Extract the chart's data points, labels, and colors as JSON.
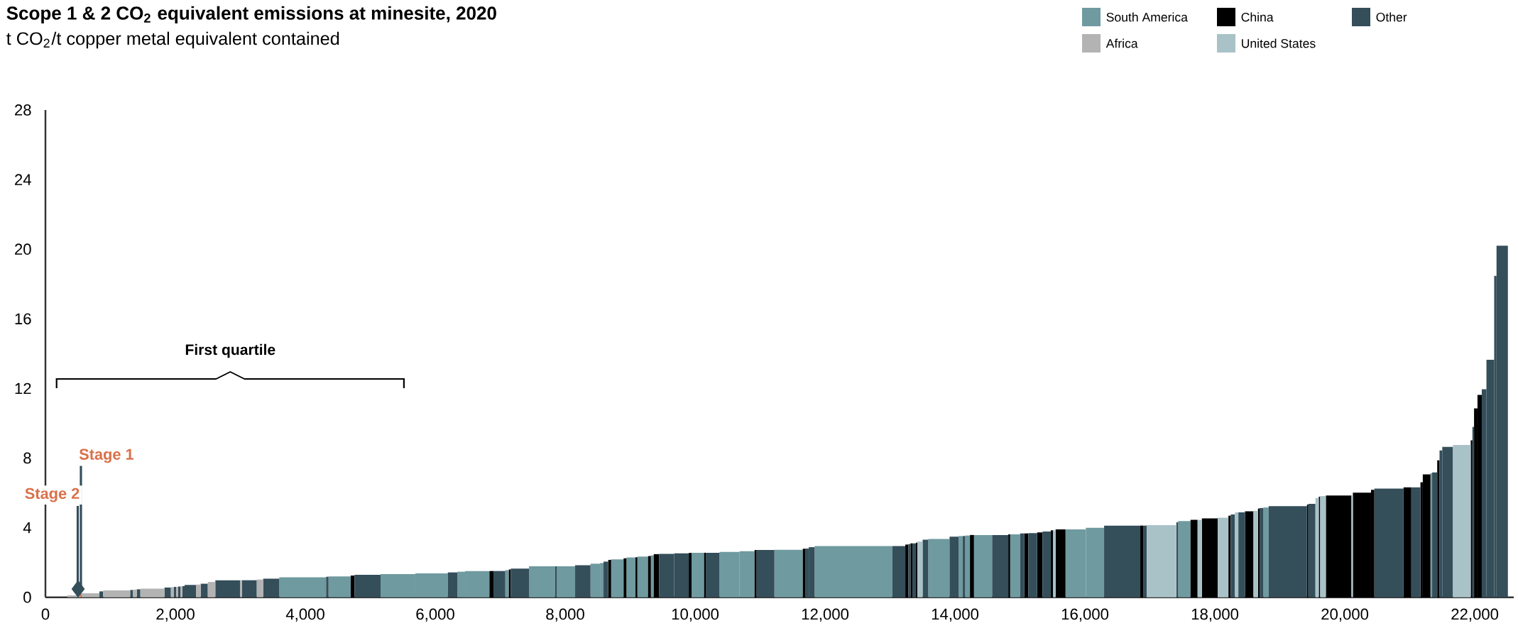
{
  "chart_data": {
    "type": "histogram",
    "title": "Scope 1 & 2 CO$_{2}$ equivalent emissions at minesite, 2020",
    "subtitle": "t CO$_{2}$/t copper metal equivalent contained",
    "bins": [
      339,
      536,
      557,
      831,
      889,
      1304,
      1348,
      1406,
      1461,
      1832,
      1931,
      1978,
      2014,
      2040,
      2077,
      2106,
      2142,
      2317,
      2390,
      2499,
      2615,
      2998,
      3024,
      3253,
      3351,
      3599,
      4320,
      4357,
      4699,
      4757,
      5158,
      5694,
      6193,
      6339,
      6459,
      6834,
      6896,
      7078,
      7133,
      7162,
      7443,
      7843,
      7869,
      8153,
      8390,
      8536,
      8590,
      8663,
      8707,
      8899,
      8943,
      9082,
      9111,
      9275,
      9319,
      9363,
      9447,
      9676,
      9902,
      9945,
      10138,
      10164,
      10375,
      10685,
      10915,
      10947,
      11220,
      11657,
      11694,
      11749,
      11839,
      13035,
      13235,
      13282,
      13315,
      13344,
      13399,
      13421,
      13501,
      13588,
      13916,
      14055,
      14120,
      14157,
      14230,
      14292,
      14572,
      14820,
      14849,
      15002,
      15067,
      15129,
      15264,
      15347,
      15475,
      15511,
      15548,
      15701,
      16014,
      16295,
      16852,
      16896,
      16951,
      17407,
      17435,
      17625,
      17734,
      17800,
      18044,
      18208,
      18244,
      18309,
      18361,
      18463,
      18594,
      18663,
      18689,
      18746,
      18827,
      19417,
      19439,
      19548,
      19599,
      19621,
      19708,
      20102,
      20124,
      20403,
      20455,
      20904,
      21024,
      21164,
      21200,
      21318,
      21344,
      21422,
      21458,
      21500,
      21665,
      21938,
      21964,
      21989,
      22042,
      22108,
      22180,
      22299,
      22335,
      22510
    ],
    "series": [
      {
        "name": "South America",
        "color": "#6f9aa0",
        "values": [
          null,
          null,
          null,
          null,
          null,
          null,
          null,
          null,
          null,
          null,
          null,
          null,
          null,
          null,
          null,
          null,
          null,
          null,
          null,
          null,
          null,
          null,
          null,
          null,
          null,
          1.15,
          null,
          1.2,
          null,
          null,
          1.33,
          1.37,
          null,
          1.47,
          1.51,
          null,
          null,
          1.56,
          null,
          null,
          1.78,
          null,
          1.78,
          null,
          1.93,
          1.97,
          null,
          null,
          2.18,
          null,
          2.29,
          null,
          2.34,
          null,
          2.41,
          null,
          null,
          null,
          null,
          2.56,
          null,
          null,
          2.61,
          2.65,
          null,
          null,
          2.73,
          null,
          null,
          null,
          2.94,
          null,
          null,
          null,
          null,
          null,
          null,
          null,
          null,
          3.35,
          null,
          3.52,
          null,
          3.55,
          null,
          3.58,
          null,
          null,
          3.62,
          null,
          null,
          null,
          null,
          null,
          null,
          null,
          null,
          3.9,
          3.99,
          null,
          null,
          null,
          null,
          null,
          4.38,
          null,
          null,
          null,
          null,
          null,
          null,
          null,
          null,
          null,
          null,
          null,
          null,
          5.16,
          null,
          null,
          null,
          null,
          null,
          null,
          null,
          null,
          null,
          null,
          null,
          null,
          null,
          null,
          null,
          7.13,
          null,
          null,
          null,
          null,
          null,
          null,
          null,
          null,
          null,
          null,
          null,
          null,
          null
        ]
      },
      {
        "name": "China",
        "color": "#000000",
        "values": [
          null,
          null,
          null,
          null,
          null,
          null,
          null,
          null,
          null,
          null,
          null,
          null,
          null,
          null,
          null,
          null,
          null,
          null,
          null,
          null,
          null,
          null,
          null,
          null,
          null,
          null,
          null,
          null,
          1.25,
          null,
          null,
          null,
          null,
          null,
          null,
          1.51,
          null,
          null,
          1.6,
          null,
          null,
          null,
          null,
          null,
          null,
          null,
          null,
          2.15,
          null,
          2.24,
          null,
          2.3,
          null,
          2.37,
          null,
          2.48,
          null,
          null,
          2.55,
          null,
          2.56,
          null,
          null,
          null,
          2.72,
          null,
          null,
          2.79,
          null,
          null,
          null,
          null,
          3.03,
          null,
          3.1,
          null,
          3.14,
          null,
          null,
          null,
          null,
          null,
          null,
          null,
          3.58,
          null,
          null,
          3.62,
          null,
          null,
          3.67,
          null,
          3.73,
          null,
          3.85,
          null,
          3.9,
          null,
          null,
          null,
          4.12,
          null,
          null,
          null,
          null,
          4.45,
          null,
          4.53,
          null,
          4.69,
          null,
          null,
          null,
          4.94,
          null,
          5.1,
          null,
          null,
          null,
          5.33,
          null,
          null,
          5.78,
          null,
          5.85,
          null,
          6.01,
          6.17,
          null,
          6.32,
          null,
          6.61,
          7.06,
          null,
          null,
          7.87,
          null,
          null,
          null,
          9.02,
          null,
          10.85,
          11.63,
          null,
          null,
          null,
          null
        ]
      },
      {
        "name": "Other",
        "color": "#344e5a",
        "values": [
          null,
          null,
          null,
          0.34,
          null,
          0.42,
          null,
          0.46,
          null,
          0.56,
          null,
          0.6,
          null,
          0.62,
          null,
          0.64,
          0.71,
          null,
          0.78,
          null,
          0.98,
          null,
          0.98,
          null,
          1.07,
          null,
          1.18,
          null,
          null,
          1.29,
          null,
          null,
          1.43,
          null,
          null,
          null,
          1.51,
          null,
          null,
          1.65,
          null,
          1.78,
          null,
          1.84,
          null,
          null,
          2.05,
          null,
          null,
          null,
          null,
          null,
          null,
          null,
          null,
          null,
          2.49,
          2.53,
          null,
          null,
          null,
          2.56,
          null,
          null,
          null,
          2.72,
          null,
          null,
          2.8,
          2.88,
          null,
          2.94,
          null,
          3.06,
          null,
          3.1,
          null,
          null,
          3.31,
          null,
          3.48,
          null,
          3.52,
          null,
          null,
          null,
          3.58,
          null,
          null,
          3.67,
          null,
          3.69,
          null,
          3.78,
          null,
          null,
          null,
          null,
          null,
          4.12,
          null,
          4.12,
          null,
          4.31,
          null,
          null,
          null,
          null,
          null,
          null,
          4.76,
          null,
          4.88,
          null,
          null,
          null,
          5.13,
          null,
          5.24,
          null,
          5.37,
          null,
          null,
          null,
          null,
          null,
          null,
          null,
          6.25,
          null,
          6.32,
          null,
          null,
          null,
          7.17,
          null,
          8.44,
          8.64,
          null,
          null,
          9.79,
          null,
          null,
          11.95,
          13.65,
          18.47,
          20.2
        ]
      },
      {
        "name": "Africa",
        "color": "#b3b3b3",
        "values": [
          0.11,
          null,
          0.23,
          null,
          0.39,
          null,
          0.44,
          null,
          0.5,
          null,
          0.58,
          null,
          0.6,
          null,
          0.63,
          null,
          null,
          0.73,
          null,
          0.88,
          null,
          0.98,
          null,
          1.02,
          null,
          null,
          null,
          null,
          null,
          null,
          null,
          null,
          null,
          null,
          null,
          null,
          null,
          null,
          null,
          null,
          null,
          null,
          null,
          null,
          null,
          null,
          null,
          null,
          null,
          null,
          null,
          null,
          null,
          null,
          null,
          null,
          null,
          null,
          null,
          null,
          null,
          null,
          null,
          null,
          null,
          null,
          null,
          null,
          null,
          null,
          null,
          null,
          null,
          null,
          null,
          null,
          null,
          null,
          null,
          null,
          null,
          null,
          null,
          null,
          null,
          null,
          null,
          null,
          null,
          null,
          null,
          null,
          null,
          null,
          null,
          null,
          null,
          null,
          null,
          null,
          null,
          null,
          null,
          null,
          null,
          null,
          null,
          null,
          null,
          null,
          null,
          null,
          null,
          null,
          null,
          null,
          null,
          null,
          null,
          null,
          null,
          null,
          null,
          null,
          null,
          null,
          null,
          null,
          null,
          null,
          null,
          null,
          null,
          null,
          null,
          null,
          null,
          null,
          null,
          null,
          null,
          null,
          null,
          null,
          null,
          null,
          null
        ]
      },
      {
        "name": "United States",
        "color": "#a9c2c8",
        "values": [
          null,
          null,
          null,
          null,
          null,
          null,
          null,
          null,
          null,
          null,
          null,
          null,
          null,
          null,
          null,
          null,
          null,
          null,
          null,
          null,
          null,
          null,
          null,
          null,
          null,
          null,
          null,
          null,
          null,
          null,
          null,
          null,
          null,
          null,
          null,
          null,
          null,
          null,
          null,
          null,
          null,
          null,
          null,
          null,
          null,
          null,
          null,
          null,
          null,
          null,
          null,
          null,
          null,
          null,
          null,
          null,
          null,
          null,
          null,
          null,
          null,
          null,
          null,
          null,
          null,
          null,
          null,
          null,
          null,
          null,
          null,
          null,
          null,
          null,
          null,
          null,
          null,
          3.2,
          null,
          null,
          null,
          null,
          null,
          null,
          null,
          null,
          null,
          null,
          null,
          null,
          null,
          null,
          null,
          null,
          null,
          3.85,
          null,
          null,
          null,
          null,
          null,
          null,
          4.15,
          null,
          null,
          null,
          4.45,
          null,
          4.57,
          null,
          null,
          4.88,
          null,
          null,
          4.97,
          null,
          null,
          null,
          null,
          null,
          null,
          5.71,
          null,
          5.82,
          null,
          5.85,
          null,
          null,
          null,
          null,
          null,
          null,
          null,
          null,
          null,
          null,
          null,
          null,
          8.75,
          null,
          null,
          null,
          null,
          null,
          null,
          null,
          null
        ]
      },
      {
        "color": "#d9714a",
        "values": [
          null,
          0.2,
          null,
          null,
          null,
          null,
          null,
          null,
          null,
          null,
          null,
          null,
          null,
          null,
          null,
          null,
          null,
          null,
          null,
          null,
          null,
          null,
          null,
          null,
          null,
          null,
          null,
          null,
          null,
          null,
          null,
          null,
          null,
          null,
          null,
          null,
          null,
          null,
          null,
          null,
          null,
          null,
          null,
          null,
          null,
          null,
          null,
          null,
          null,
          null,
          null,
          null,
          null,
          null,
          null,
          null,
          null,
          null,
          null,
          null,
          null,
          null,
          null,
          null,
          null,
          null,
          null,
          null,
          null,
          null,
          null,
          null,
          null,
          null,
          null,
          null,
          null,
          null,
          null,
          null,
          null,
          null,
          null,
          null,
          null,
          null,
          null,
          null,
          null,
          null,
          null,
          null,
          null,
          null,
          null,
          null,
          null,
          null,
          null,
          null,
          null,
          null,
          null,
          null,
          null,
          null,
          null,
          null,
          null,
          null,
          null,
          null,
          null,
          null,
          null,
          null,
          null,
          null,
          null,
          null,
          null,
          null,
          null,
          null,
          null,
          null,
          null,
          null,
          null,
          null,
          null,
          null,
          null,
          null,
          null,
          null,
          null,
          null,
          null,
          null,
          null,
          null,
          null,
          null,
          null,
          null,
          null
        ]
      },
      {
        "type": "scatter",
        "color": "#344e5a",
        "marker": "diamond",
        "x": [
          503
        ],
        "values": [
          0.48
        ]
      }
    ],
    "annotations": [
      {
        "text": "Stage 1",
        "x": 546,
        "y": 0.55
      },
      {
        "text": "Stage 2",
        "x": 497,
        "y": 0.55
      },
      "First quartile"
    ],
    "xlim": [
      0,
      22600
    ],
    "xticks": [
      0,
      {
        "value": 2000,
        "label": "2,000"
      },
      {
        "value": 4000,
        "label": "4,000"
      },
      {
        "value": 6000,
        "label": "6,000"
      },
      {
        "value": 8000,
        "label": "8,000"
      },
      {
        "value": 10000,
        "label": "10,000"
      },
      {
        "value": 12000,
        "label": "12,000"
      },
      {
        "value": 14000,
        "label": "14,000"
      },
      {
        "value": 16000,
        "label": "16,000"
      },
      {
        "value": 18000,
        "label": "18,000"
      },
      {
        "value": 20000,
        "label": "20,000"
      },
      {
        "value": 22000,
        "label": "22,000"
      }
    ],
    "ylim": [
      0,
      28
    ],
    "yticks": [
      0,
      4,
      8,
      12,
      16,
      20,
      24,
      28
    ],
    "legend": "top right"
  }
}
